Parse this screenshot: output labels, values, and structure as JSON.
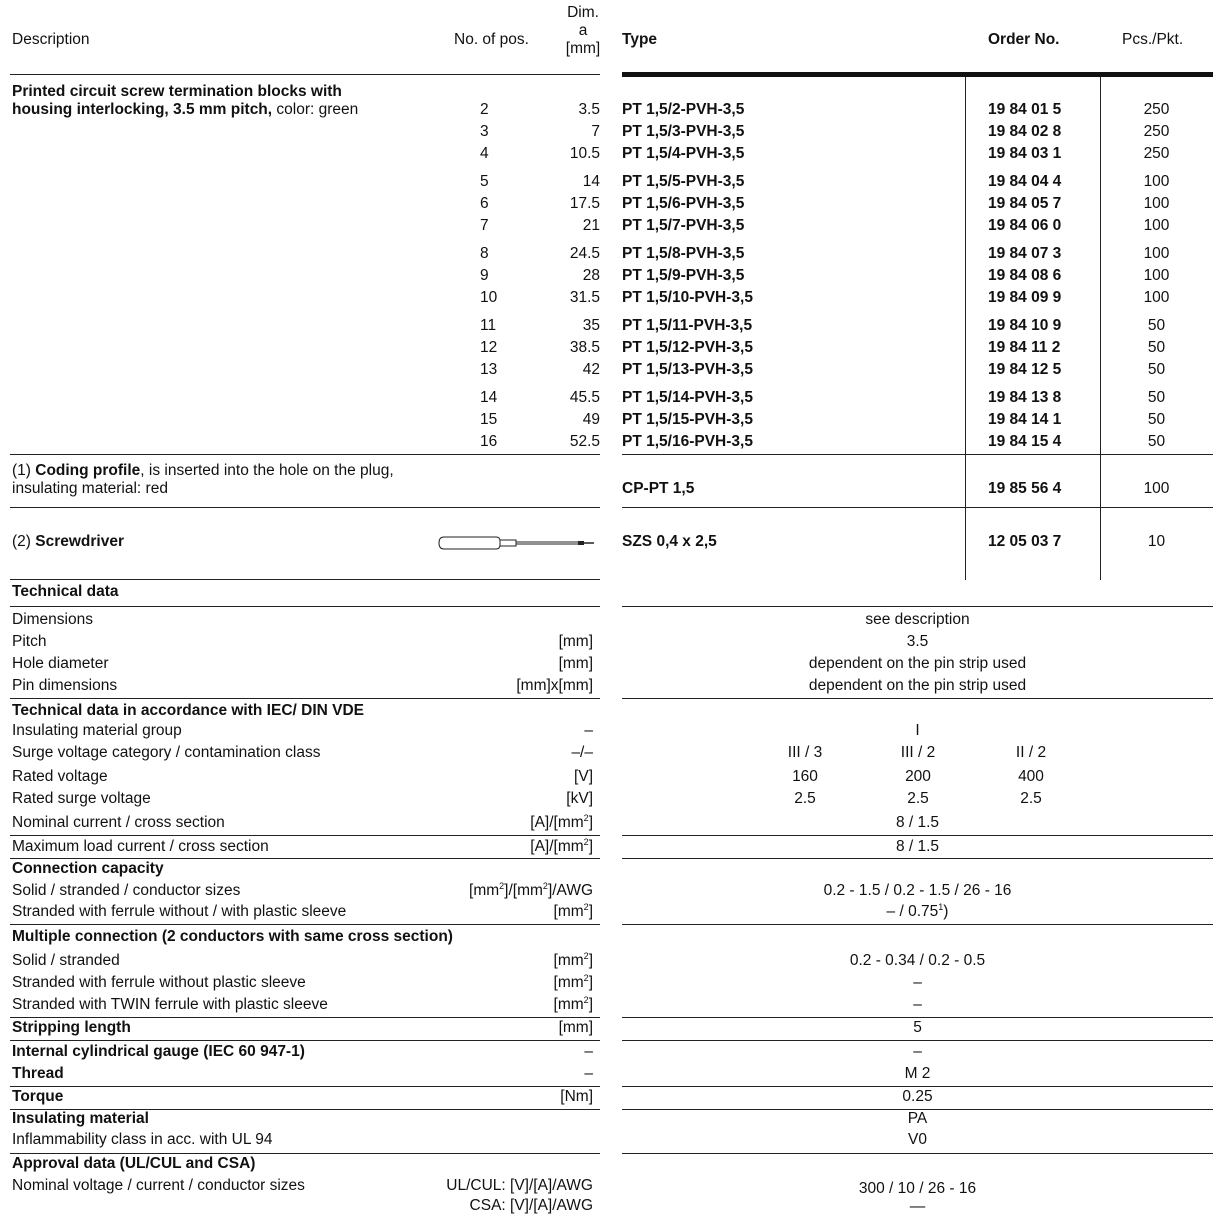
{
  "header": {
    "description": "Description",
    "no_of_pos": "No. of pos.",
    "dim_line1": "Dim.",
    "dim_line2": "a",
    "dim_line3": "[mm]",
    "type": "Type",
    "order_no": "Order No.",
    "pcs": "Pcs./Pkt."
  },
  "product": {
    "desc_line1_bold": "Printed circuit screw termination blocks with",
    "desc_line2_bold": "housing interlocking, 3.5 mm pitch,",
    "desc_line2_rest": " color: green",
    "groups": [
      [
        {
          "pos": "2",
          "dim": "3.5",
          "type": "PT 1,5/2-PVH-3,5",
          "order": "19 84 01 5",
          "pcs": "250"
        },
        {
          "pos": "3",
          "dim": "7",
          "type": "PT 1,5/3-PVH-3,5",
          "order": "19 84 02 8",
          "pcs": "250"
        },
        {
          "pos": "4",
          "dim": "10.5",
          "type": "PT 1,5/4-PVH-3,5",
          "order": "19 84 03 1",
          "pcs": "250"
        }
      ],
      [
        {
          "pos": "5",
          "dim": "14",
          "type": "PT 1,5/5-PVH-3,5",
          "order": "19 84 04 4",
          "pcs": "100"
        },
        {
          "pos": "6",
          "dim": "17.5",
          "type": "PT 1,5/6-PVH-3,5",
          "order": "19 84 05 7",
          "pcs": "100"
        },
        {
          "pos": "7",
          "dim": "21",
          "type": "PT 1,5/7-PVH-3,5",
          "order": "19 84 06 0",
          "pcs": "100"
        }
      ],
      [
        {
          "pos": "8",
          "dim": "24.5",
          "type": "PT 1,5/8-PVH-3,5",
          "order": "19 84 07 3",
          "pcs": "100"
        },
        {
          "pos": "9",
          "dim": "28",
          "type": "PT 1,5/9-PVH-3,5",
          "order": "19 84 08 6",
          "pcs": "100"
        },
        {
          "pos": "10",
          "dim": "31.5",
          "type": "PT 1,5/10-PVH-3,5",
          "order": "19 84 09 9",
          "pcs": "100"
        }
      ],
      [
        {
          "pos": "11",
          "dim": "35",
          "type": "PT 1,5/11-PVH-3,5",
          "order": "19 84 10 9",
          "pcs": "50"
        },
        {
          "pos": "12",
          "dim": "38.5",
          "type": "PT 1,5/12-PVH-3,5",
          "order": "19 84 11 2",
          "pcs": "50"
        },
        {
          "pos": "13",
          "dim": "42",
          "type": "PT 1,5/13-PVH-3,5",
          "order": "19 84 12 5",
          "pcs": "50"
        }
      ],
      [
        {
          "pos": "14",
          "dim": "45.5",
          "type": "PT 1,5/14-PVH-3,5",
          "order": "19 84 13 8",
          "pcs": "50"
        },
        {
          "pos": "15",
          "dim": "49",
          "type": "PT 1,5/15-PVH-3,5",
          "order": "19 84 14 1",
          "pcs": "50"
        },
        {
          "pos": "16",
          "dim": "52.5",
          "type": "PT 1,5/16-PVH-3,5",
          "order": "19 84 15 4",
          "pcs": "50"
        }
      ]
    ]
  },
  "coding": {
    "prefix": "(1) ",
    "bold": "Coding profile",
    "rest": ", is inserted into the hole on the plug,",
    "line2": "insulating material: red",
    "type": "CP-PT 1,5",
    "order": "19 85 56 4",
    "pcs": "100"
  },
  "screwdriver": {
    "prefix": "(2) ",
    "bold": "Screwdriver",
    "type": "SZS 0,4 x 2,5",
    "order": "12 05 03 7",
    "pcs": "10"
  },
  "tech": {
    "title": "Technical data",
    "dimensions": {
      "label": "Dimensions",
      "unit": "",
      "value": "see description"
    },
    "pitch": {
      "label": "Pitch",
      "unit": "[mm]",
      "value": "3.5"
    },
    "hole": {
      "label": "Hole diameter",
      "unit": "[mm]",
      "value": "dependent on the pin strip used"
    },
    "pin": {
      "label": "Pin dimensions",
      "unit": "[mm]x[mm]",
      "value": "dependent on the pin strip used"
    },
    "iec_title": "Technical data in accordance with IEC/ DIN VDE",
    "img": {
      "label": "Insulating material group",
      "unit": "–",
      "value": "I"
    },
    "surge_cat": {
      "label": "Surge voltage category / contamination class",
      "unit": "–/–",
      "v1": "III / 3",
      "v2": "III / 2",
      "v3": "II / 2"
    },
    "rated_v": {
      "label": "Rated voltage",
      "unit": "[V]",
      "v1": "160",
      "v2": "200",
      "v3": "400"
    },
    "rated_sv": {
      "label": "Rated surge voltage",
      "unit": "[kV]",
      "v1": "2.5",
      "v2": "2.5",
      "v3": "2.5"
    },
    "nominal": {
      "label": "Nominal current / cross section",
      "unit": "[A]/[mm",
      "unit_sup": "2",
      "unit_end": "]",
      "value": "8 / 1.5"
    },
    "max_load": {
      "label": "Maximum load current / cross section",
      "unit": "[A]/[mm",
      "unit_sup": "2",
      "unit_end": "]",
      "value": "8 / 1.5"
    },
    "conn_title": "Connection capacity",
    "solid": {
      "label": "Solid / stranded / conductor sizes",
      "unit_a": "[mm",
      "unit_b": "]/[mm",
      "unit_c": "]/AWG",
      "sup": "2",
      "value": "0.2 - 1.5 / 0.2 - 1.5 / 26 - 16"
    },
    "ferrule": {
      "label": "Stranded with ferrule without / with plastic sleeve",
      "unit": "[mm",
      "unit_sup": "2",
      "unit_end": "]",
      "value": "– / 0.75",
      "value_sup": "1",
      "value_end": ")"
    },
    "multi_title": "Multiple connection (2 conductors with same cross section)",
    "m_solid": {
      "label": "Solid / stranded",
      "unit": "[mm",
      "unit_sup": "2",
      "unit_end": "]",
      "value": "0.2 - 0.34 / 0.2 - 0.5"
    },
    "m_ferrule": {
      "label": "Stranded with ferrule without plastic sleeve",
      "unit": "[mm",
      "unit_sup": "2",
      "unit_end": "]",
      "value": "–"
    },
    "m_twin": {
      "label": "Stranded with TWIN ferrule with plastic sleeve",
      "unit": "[mm",
      "unit_sup": "2",
      "unit_end": "]",
      "value": "–"
    },
    "stripping": {
      "label": "Stripping length",
      "unit": "[mm]",
      "value": "5"
    },
    "gauge": {
      "label": "Internal cylindrical gauge (IEC 60 947-1)",
      "unit": "–",
      "value": "–"
    },
    "thread": {
      "label": "Thread",
      "unit": "–",
      "value": "M 2"
    },
    "torque": {
      "label": "Torque",
      "unit": "[Nm]",
      "value": "0.25"
    },
    "ins_title": {
      "label": "Insulating material",
      "value": "PA"
    },
    "flamm": {
      "label": "Inflammability class in acc. with UL 94",
      "value": "V0"
    },
    "approval_title": "Approval data (UL/CUL and CSA)",
    "approval": {
      "label": "Nominal voltage / current / conductor sizes",
      "unit1": "UL/CUL: [V]/[A]/AWG",
      "unit2": "CSA: [V]/[A]/AWG",
      "value1": "300 / 10 / 26 - 16",
      "value2": "—"
    }
  }
}
